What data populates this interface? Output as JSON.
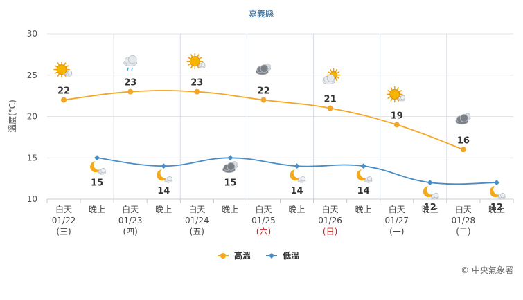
{
  "chart_data": {
    "type": "line",
    "title": "嘉義縣",
    "ylabel": "溫度(°C)",
    "ylim": [
      10,
      30
    ],
    "yticks": [
      10,
      15,
      20,
      25,
      30
    ],
    "grid": true,
    "legend_position": "bottom-center",
    "categories": [
      {
        "period": "白天",
        "date": "01/22",
        "weekday": "(三)",
        "holiday": false
      },
      {
        "period": "晚上",
        "date": "",
        "weekday": "",
        "holiday": false
      },
      {
        "period": "白天",
        "date": "01/23",
        "weekday": "(四)",
        "holiday": false
      },
      {
        "period": "晚上",
        "date": "",
        "weekday": "",
        "holiday": false
      },
      {
        "period": "白天",
        "date": "01/24",
        "weekday": "(五)",
        "holiday": false
      },
      {
        "period": "晚上",
        "date": "",
        "weekday": "",
        "holiday": false
      },
      {
        "period": "白天",
        "date": "01/25",
        "weekday": "(六)",
        "holiday": true
      },
      {
        "period": "晚上",
        "date": "",
        "weekday": "",
        "holiday": false
      },
      {
        "period": "白天",
        "date": "01/26",
        "weekday": "(日)",
        "holiday": true
      },
      {
        "period": "晚上",
        "date": "",
        "weekday": "",
        "holiday": false
      },
      {
        "period": "白天",
        "date": "01/27",
        "weekday": "(一)",
        "holiday": false
      },
      {
        "period": "晚上",
        "date": "",
        "weekday": "",
        "holiday": false
      },
      {
        "period": "白天",
        "date": "01/28",
        "weekday": "(二)",
        "holiday": false
      },
      {
        "period": "晚上",
        "date": "",
        "weekday": "",
        "holiday": false
      }
    ],
    "series": [
      {
        "name": "高溫",
        "color": "#f5a623",
        "points": [
          {
            "index": 0,
            "value": 22,
            "icon": "sunny-cloud-icon"
          },
          {
            "index": 2,
            "value": 23,
            "icon": "cloud-rain-icon"
          },
          {
            "index": 4,
            "value": 23,
            "icon": "sunny-cloud-icon"
          },
          {
            "index": 6,
            "value": 22,
            "icon": "dark-cloud-icon"
          },
          {
            "index": 8,
            "value": 21,
            "icon": "cloud-sun-icon"
          },
          {
            "index": 10,
            "value": 19,
            "icon": "sunny-cloud-icon"
          },
          {
            "index": 12,
            "value": 16,
            "icon": "dark-cloud-icon"
          }
        ]
      },
      {
        "name": "低溫",
        "color": "#4a8cc4",
        "points": [
          {
            "index": 1,
            "value": 15,
            "icon": "moon-cloud-icon"
          },
          {
            "index": 3,
            "value": 14,
            "icon": "moon-cloud-icon"
          },
          {
            "index": 5,
            "value": 15,
            "icon": "dark-cloud-icon"
          },
          {
            "index": 7,
            "value": 14,
            "icon": "moon-cloud-icon"
          },
          {
            "index": 9,
            "value": 14,
            "icon": "moon-cloud-icon"
          },
          {
            "index": 11,
            "value": 12,
            "icon": "moon-cloud-icon"
          },
          {
            "index": 13,
            "value": 12,
            "icon": "moon-cloud-icon"
          }
        ]
      }
    ],
    "label_color": "#444444",
    "holiday_color": "#cc2222"
  },
  "credit": "© 中央氣象署"
}
